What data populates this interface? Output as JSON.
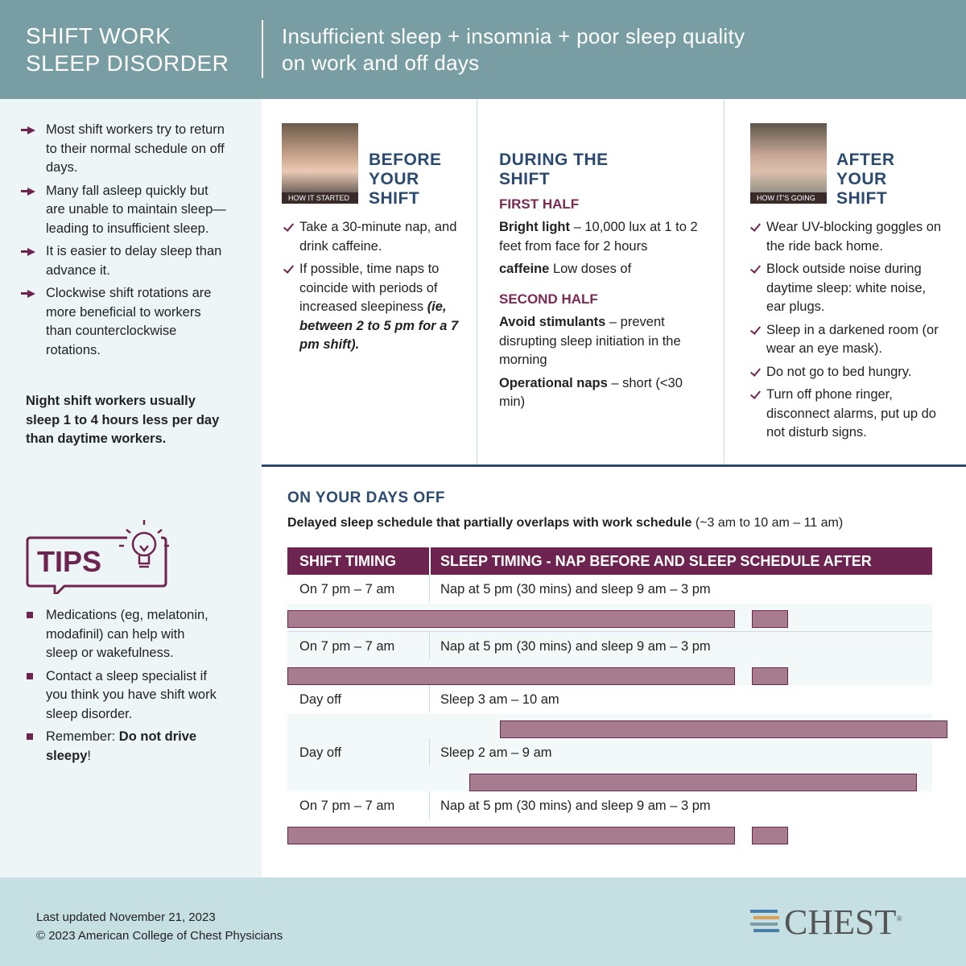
{
  "header": {
    "title_line1": "SHIFT WORK",
    "title_line2": "SLEEP DISORDER",
    "subtitle_line1": "Insufficient sleep + insomnia + poor sleep quality",
    "subtitle_line2": "on work and off days"
  },
  "left": {
    "bullets": [
      "Most shift workers try to return to their normal schedule on off days.",
      "Many fall asleep quickly but are unable to maintain sleep—leading to insufficient sleep.",
      "It is easier to delay sleep than advance it.",
      "Clockwise shift rotations are more beneficial to workers than counterclockwise rotations."
    ],
    "note": "Night shift workers usually sleep 1 to 4 hours less per day than daytime workers.",
    "tips_label": "TIPS",
    "tips": [
      {
        "text": "Medications (eg, melatonin, modafinil) can help with sleep or wakefulness."
      },
      {
        "text": "Contact a sleep specialist if you think you have shift work sleep disorder."
      },
      {
        "text": "Remember:",
        "bold": "Do not drive sleepy",
        "end": "!"
      }
    ]
  },
  "before": {
    "photo_label": "HOW IT STARTED",
    "heading": "BEFORE YOUR SHIFT",
    "items": [
      {
        "text": "Take a 30-minute nap, and drink caffeine."
      },
      {
        "text": "If possible, time naps to coincide with periods of increased sleepiness",
        "note": "(ie, between 2 to 5 pm for a 7 pm shift)."
      }
    ]
  },
  "during": {
    "heading": "DURING THE SHIFT",
    "first_half": "FIRST HALF",
    "first_items": [
      {
        "bold": "Bright light",
        "text": "– 10,000 lux at 1 to 2 feet from face for 2 hours"
      },
      {
        "text": "Low doses of",
        "bold": "caffeine"
      }
    ],
    "second_half": "SECOND HALF",
    "second_items": [
      {
        "bold": "Avoid stimulants",
        "text": "– prevent disrupting sleep initiation in the morning"
      },
      {
        "bold": "Operational naps",
        "text": "– short (<30 min)"
      }
    ]
  },
  "after": {
    "photo_label": "HOW IT'S GOING",
    "heading": "AFTER YOUR SHIFT",
    "items": [
      "Wear UV-blocking goggles on the ride back home.",
      "Block outside noise during daytime sleep: white noise, ear plugs.",
      "Sleep in a darkened room (or wear an eye mask).",
      "Do not go to bed hungry.",
      "Turn off phone ringer, disconnect alarms, put up do not disturb signs."
    ]
  },
  "days_off": {
    "heading": "ON YOUR DAYS OFF",
    "intro_bold": "Delayed sleep schedule that partially overlaps with work schedule",
    "intro_text": "(~3 am to 10 am – 11 am)",
    "table": {
      "headers": [
        "SHIFT TIMING",
        "SLEEP TIMING - NAP BEFORE AND SLEEP SCHEDULE AFTER"
      ],
      "rows": [
        [
          "On 7 pm – 7 am",
          "Nap at 5 pm (30 mins) and sleep 9 am – 3 pm"
        ],
        [
          "On 7 pm – 7 am",
          "Nap at 5 pm (30 mins) and sleep 9 am – 3 pm"
        ],
        [
          "Day off",
          "Sleep 3 am – 10 am"
        ],
        [
          "Day off",
          "Sleep 2 am – 9 am"
        ],
        [
          "On 7 pm – 7 am",
          "Nap at 5 pm (30 mins) and sleep 9 am – 3 pm"
        ]
      ]
    }
  },
  "footer": {
    "updated": "Last updated November 21, 2023",
    "copyright": "© 2023 American College of Chest Physicians",
    "logo": "CHEST",
    "logo_mark": "®"
  }
}
